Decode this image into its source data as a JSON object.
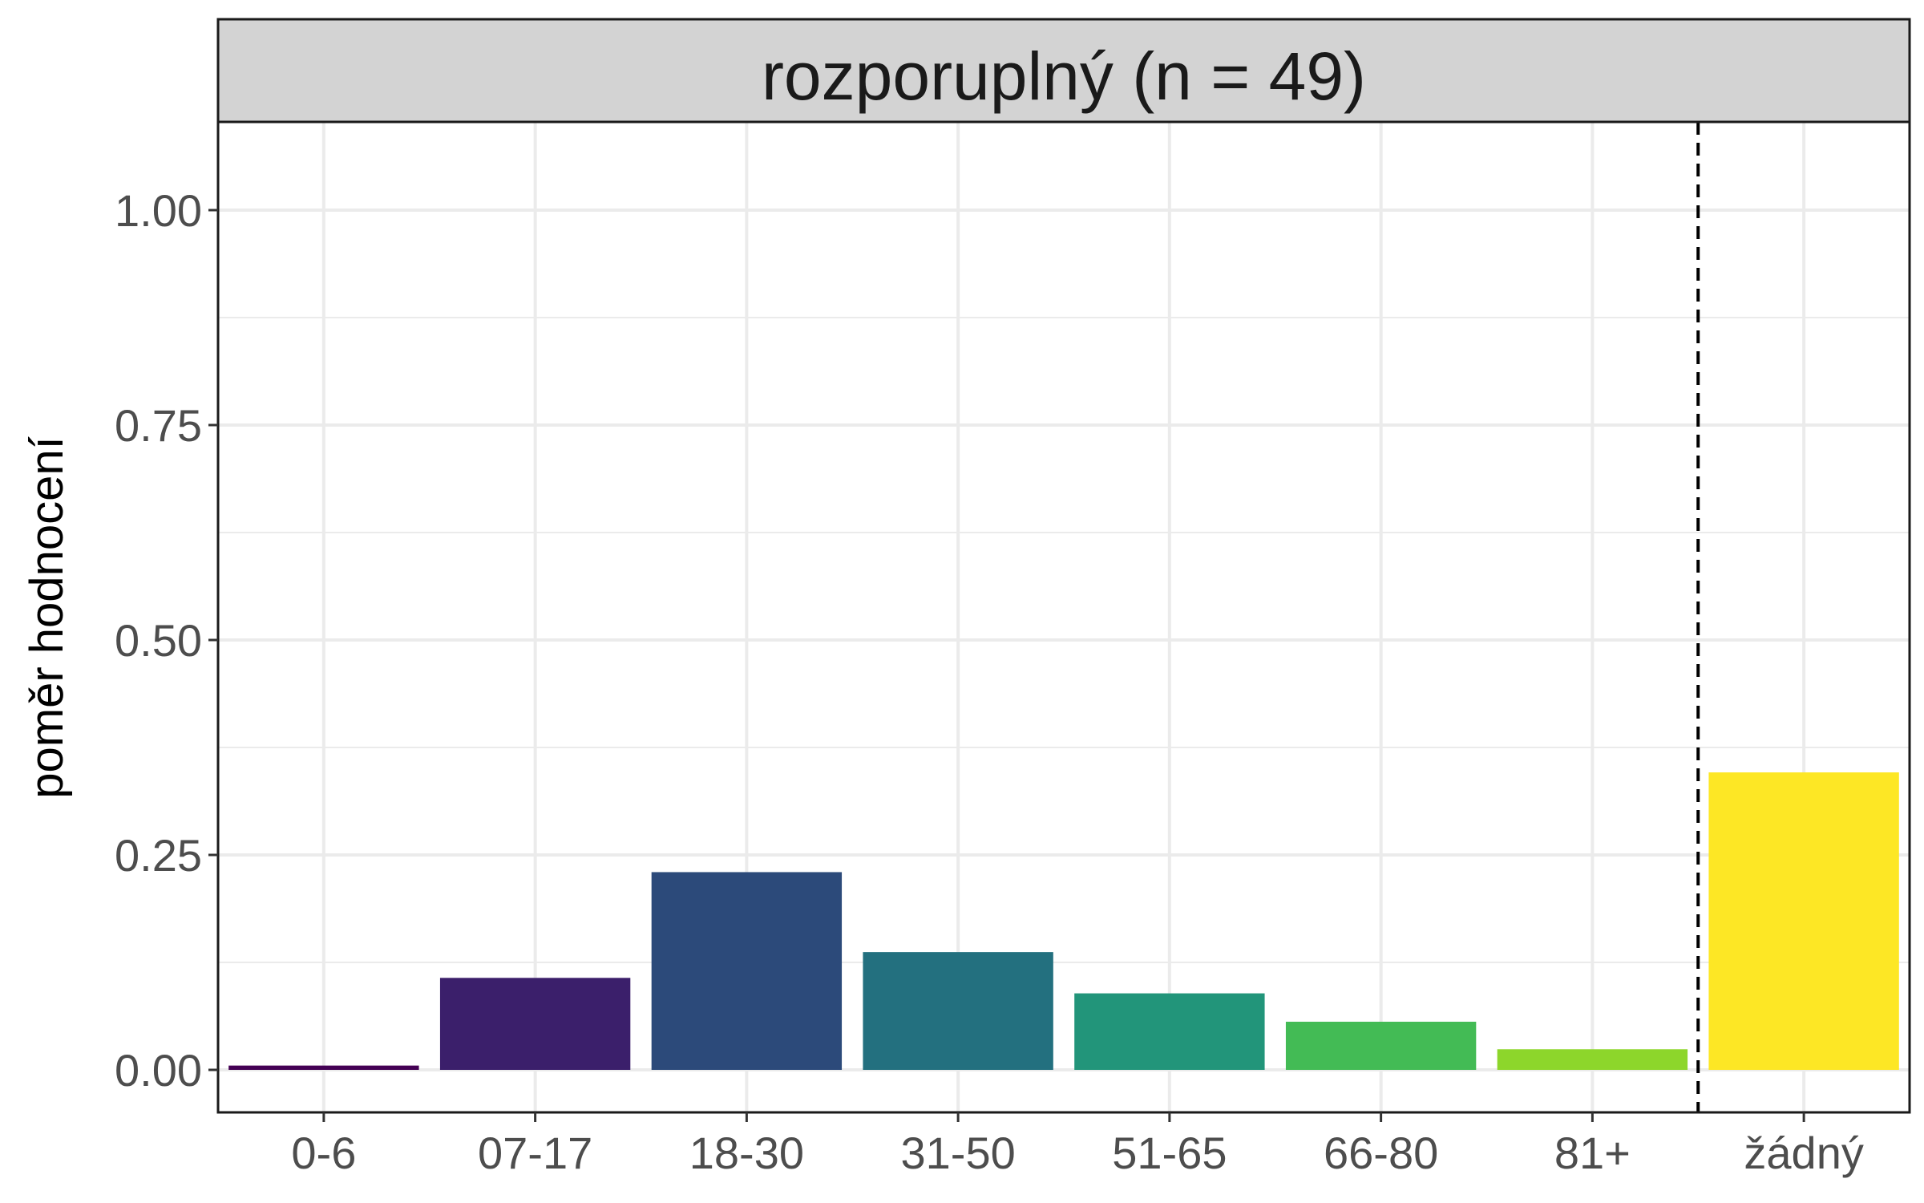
{
  "chart_data": {
    "type": "bar",
    "panel_title": "rozporuplný (n = 49)",
    "xlabel": "",
    "ylabel": "poměr hodnocení",
    "ylim": [
      0,
      1.1
    ],
    "y_ticks": [
      "0.00",
      "0.25",
      "0.50",
      "0.75",
      "1.00"
    ],
    "y_tick_values": [
      0,
      0.25,
      0.5,
      0.75,
      1.0
    ],
    "y_minor_values": [
      0.125,
      0.375,
      0.625,
      0.875
    ],
    "grid": true,
    "categories": [
      "0-6",
      "07-17",
      "18-30",
      "31-50",
      "51-65",
      "66-80",
      "81+",
      "žádný"
    ],
    "values": [
      0.005,
      0.107,
      0.23,
      0.137,
      0.089,
      0.056,
      0.024,
      0.346
    ],
    "colors": [
      "#440154",
      "#3b1f6b",
      "#2c4a7a",
      "#23707f",
      "#22957a",
      "#43bb55",
      "#8dd62b",
      "#fde725"
    ],
    "divider_after_index": 6,
    "divider_style": "dashed"
  }
}
